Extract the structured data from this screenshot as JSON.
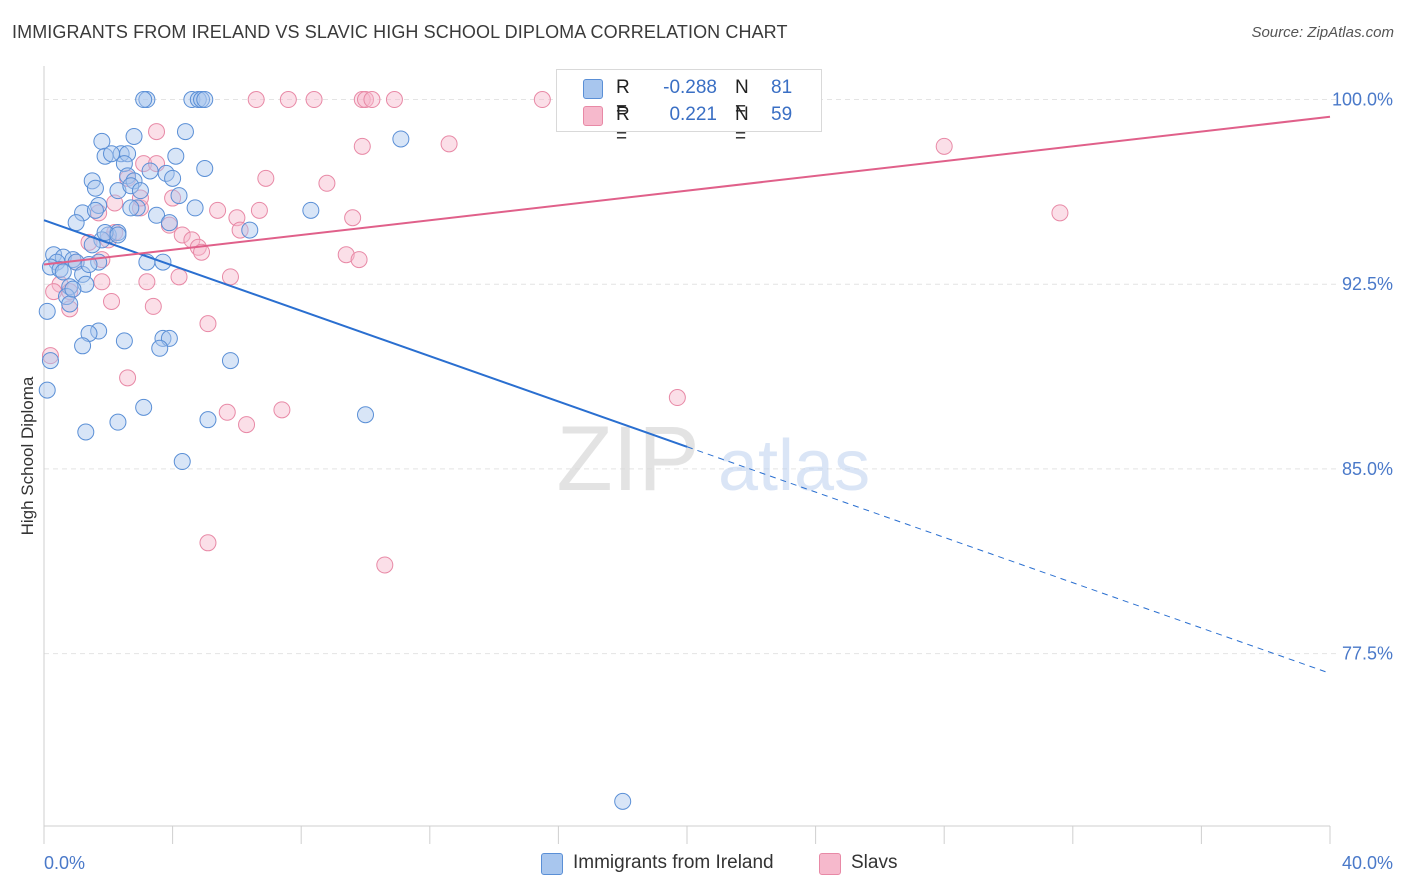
{
  "header": {
    "title": "IMMIGRANTS FROM IRELAND VS SLAVIC HIGH SCHOOL DIPLOMA CORRELATION CHART",
    "source": "Source: ZipAtlas.com"
  },
  "watermark": {
    "zip": "ZIP",
    "atlas": "atlas"
  },
  "legend": {
    "rows": [
      {
        "r_label": "R =",
        "r_value": "-0.288",
        "n_label": "N =",
        "n_value": "81"
      },
      {
        "r_label": "R =",
        "r_value": "0.221",
        "n_label": "N =",
        "n_value": "59"
      }
    ]
  },
  "bottom_legend": {
    "items": [
      {
        "label": "Immigrants from Ireland"
      },
      {
        "label": "Slavs"
      }
    ]
  },
  "chart_data": {
    "type": "scatter",
    "title": "IMMIGRANTS FROM IRELAND VS SLAVIC HIGH SCHOOL DIPLOMA CORRELATION CHART",
    "xlabel": "",
    "ylabel": "High School Diploma",
    "xlim": [
      0,
      40
    ],
    "ylim": [
      70.5,
      101.2
    ],
    "x_tick_labels": [
      "0.0%",
      "40.0%"
    ],
    "y_ticks": [
      100,
      92.5,
      85,
      77.5
    ],
    "y_tick_labels": [
      "100.0%",
      "92.5%",
      "85.0%",
      "77.5%"
    ],
    "grid": true,
    "legend_position": "top-center",
    "colors": {
      "ireland_fill": "#a8c6ee",
      "ireland_stroke": "#5a8fd6",
      "ireland_line": "#2a6fd0",
      "slavs_fill": "#f6b9cc",
      "slavs_stroke": "#e889a6",
      "slavs_line": "#e0608a",
      "tick_label": "#4a79c9"
    },
    "series": [
      {
        "name": "Immigrants from Ireland",
        "r": -0.288,
        "n": 81,
        "trend": {
          "x0": 0,
          "y0": 95.1,
          "x1": 20,
          "y1": 85.9,
          "dash_x1": 40,
          "dash_y1": 76.7
        },
        "points": [
          {
            "x": 3.2,
            "y": 100
          },
          {
            "x": 3.1,
            "y": 100
          },
          {
            "x": 4.6,
            "y": 100
          },
          {
            "x": 4.8,
            "y": 100
          },
          {
            "x": 4.9,
            "y": 100
          },
          {
            "x": 11.1,
            "y": 98.4
          },
          {
            "x": 2.8,
            "y": 98.5
          },
          {
            "x": 4.4,
            "y": 98.7
          },
          {
            "x": 1.8,
            "y": 98.3
          },
          {
            "x": 2.4,
            "y": 97.8
          },
          {
            "x": 1.9,
            "y": 97.7
          },
          {
            "x": 2.6,
            "y": 97.8
          },
          {
            "x": 4.1,
            "y": 97.7
          },
          {
            "x": 2.5,
            "y": 97.4
          },
          {
            "x": 5.0,
            "y": 97.2
          },
          {
            "x": 3.3,
            "y": 97.1
          },
          {
            "x": 3.8,
            "y": 97.0
          },
          {
            "x": 2.6,
            "y": 96.9
          },
          {
            "x": 1.5,
            "y": 96.7
          },
          {
            "x": 2.8,
            "y": 96.7
          },
          {
            "x": 1.6,
            "y": 96.4
          },
          {
            "x": 2.3,
            "y": 96.3
          },
          {
            "x": 2.7,
            "y": 96.5
          },
          {
            "x": 4.2,
            "y": 96.1
          },
          {
            "x": 1.7,
            "y": 95.7
          },
          {
            "x": 2.9,
            "y": 95.6
          },
          {
            "x": 4.7,
            "y": 95.6
          },
          {
            "x": 8.3,
            "y": 95.5
          },
          {
            "x": 1.2,
            "y": 95.4
          },
          {
            "x": 1.6,
            "y": 95.5
          },
          {
            "x": 3.5,
            "y": 95.3
          },
          {
            "x": 1.0,
            "y": 95.0
          },
          {
            "x": 3.9,
            "y": 95.0
          },
          {
            "x": 6.4,
            "y": 94.7
          },
          {
            "x": 2.0,
            "y": 94.5
          },
          {
            "x": 2.3,
            "y": 94.6
          },
          {
            "x": 1.8,
            "y": 94.3
          },
          {
            "x": 1.5,
            "y": 94.1
          },
          {
            "x": 0.3,
            "y": 93.7
          },
          {
            "x": 0.6,
            "y": 93.6
          },
          {
            "x": 0.9,
            "y": 93.5
          },
          {
            "x": 0.4,
            "y": 93.4
          },
          {
            "x": 1.0,
            "y": 93.4
          },
          {
            "x": 0.2,
            "y": 93.2
          },
          {
            "x": 1.7,
            "y": 93.4
          },
          {
            "x": 3.2,
            "y": 93.4
          },
          {
            "x": 3.7,
            "y": 93.4
          },
          {
            "x": 0.5,
            "y": 93.1
          },
          {
            "x": 1.2,
            "y": 92.9
          },
          {
            "x": 0.8,
            "y": 92.4
          },
          {
            "x": 1.3,
            "y": 92.5
          },
          {
            "x": 0.7,
            "y": 92.0
          },
          {
            "x": 0.8,
            "y": 91.7
          },
          {
            "x": 0.1,
            "y": 91.4
          },
          {
            "x": 1.7,
            "y": 90.6
          },
          {
            "x": 1.4,
            "y": 90.5
          },
          {
            "x": 3.7,
            "y": 90.3
          },
          {
            "x": 3.9,
            "y": 90.3
          },
          {
            "x": 2.5,
            "y": 90.2
          },
          {
            "x": 1.2,
            "y": 90.0
          },
          {
            "x": 3.6,
            "y": 89.9
          },
          {
            "x": 5.8,
            "y": 89.4
          },
          {
            "x": 0.2,
            "y": 89.4
          },
          {
            "x": 0.1,
            "y": 88.2
          },
          {
            "x": 3.1,
            "y": 87.5
          },
          {
            "x": 10.0,
            "y": 87.2
          },
          {
            "x": 5.1,
            "y": 87.0
          },
          {
            "x": 2.3,
            "y": 86.9
          },
          {
            "x": 1.3,
            "y": 86.5
          },
          {
            "x": 4.3,
            "y": 85.3
          },
          {
            "x": 18.0,
            "y": 71.5
          },
          {
            "x": 2.1,
            "y": 97.8
          },
          {
            "x": 3.0,
            "y": 96.3
          },
          {
            "x": 2.7,
            "y": 95.6
          },
          {
            "x": 1.9,
            "y": 94.6
          },
          {
            "x": 0.6,
            "y": 93.0
          },
          {
            "x": 1.4,
            "y": 93.3
          },
          {
            "x": 2.3,
            "y": 94.5
          },
          {
            "x": 0.9,
            "y": 92.3
          },
          {
            "x": 4.0,
            "y": 96.8
          },
          {
            "x": 5.0,
            "y": 100.0
          }
        ]
      },
      {
        "name": "Slavs",
        "r": 0.221,
        "n": 59,
        "trend": {
          "x0": 0,
          "y0": 93.3,
          "x1": 40,
          "y1": 99.3
        },
        "points": [
          {
            "x": 6.6,
            "y": 100
          },
          {
            "x": 7.6,
            "y": 100
          },
          {
            "x": 8.4,
            "y": 100
          },
          {
            "x": 9.9,
            "y": 100
          },
          {
            "x": 10.0,
            "y": 100
          },
          {
            "x": 10.2,
            "y": 100
          },
          {
            "x": 10.9,
            "y": 100
          },
          {
            "x": 15.5,
            "y": 100
          },
          {
            "x": 3.5,
            "y": 98.7
          },
          {
            "x": 9.9,
            "y": 98.1
          },
          {
            "x": 12.6,
            "y": 98.2
          },
          {
            "x": 28.0,
            "y": 98.1
          },
          {
            "x": 3.1,
            "y": 97.4
          },
          {
            "x": 3.5,
            "y": 97.4
          },
          {
            "x": 6.9,
            "y": 96.8
          },
          {
            "x": 2.6,
            "y": 96.8
          },
          {
            "x": 8.8,
            "y": 96.6
          },
          {
            "x": 4.0,
            "y": 96.0
          },
          {
            "x": 2.2,
            "y": 95.8
          },
          {
            "x": 3.0,
            "y": 95.6
          },
          {
            "x": 5.4,
            "y": 95.5
          },
          {
            "x": 6.7,
            "y": 95.5
          },
          {
            "x": 1.7,
            "y": 95.4
          },
          {
            "x": 6.0,
            "y": 95.2
          },
          {
            "x": 9.6,
            "y": 95.2
          },
          {
            "x": 31.6,
            "y": 95.4
          },
          {
            "x": 3.9,
            "y": 94.9
          },
          {
            "x": 6.1,
            "y": 94.7
          },
          {
            "x": 2.2,
            "y": 94.6
          },
          {
            "x": 4.3,
            "y": 94.5
          },
          {
            "x": 4.6,
            "y": 94.3
          },
          {
            "x": 1.4,
            "y": 94.2
          },
          {
            "x": 4.8,
            "y": 94.0
          },
          {
            "x": 4.9,
            "y": 93.8
          },
          {
            "x": 9.4,
            "y": 93.7
          },
          {
            "x": 9.8,
            "y": 93.5
          },
          {
            "x": 1.0,
            "y": 93.4
          },
          {
            "x": 1.8,
            "y": 93.5
          },
          {
            "x": 4.2,
            "y": 92.8
          },
          {
            "x": 5.8,
            "y": 92.8
          },
          {
            "x": 1.8,
            "y": 92.6
          },
          {
            "x": 3.2,
            "y": 92.6
          },
          {
            "x": 0.5,
            "y": 92.5
          },
          {
            "x": 0.8,
            "y": 92.2
          },
          {
            "x": 0.3,
            "y": 92.2
          },
          {
            "x": 2.1,
            "y": 91.8
          },
          {
            "x": 3.4,
            "y": 91.6
          },
          {
            "x": 0.8,
            "y": 91.5
          },
          {
            "x": 5.1,
            "y": 90.9
          },
          {
            "x": 0.2,
            "y": 89.6
          },
          {
            "x": 2.6,
            "y": 88.7
          },
          {
            "x": 19.7,
            "y": 87.9
          },
          {
            "x": 7.4,
            "y": 87.4
          },
          {
            "x": 5.7,
            "y": 87.3
          },
          {
            "x": 6.3,
            "y": 86.8
          },
          {
            "x": 5.1,
            "y": 82.0
          },
          {
            "x": 10.6,
            "y": 81.1
          },
          {
            "x": 3.0,
            "y": 96.0
          },
          {
            "x": 2.0,
            "y": 94.3
          }
        ]
      }
    ]
  }
}
